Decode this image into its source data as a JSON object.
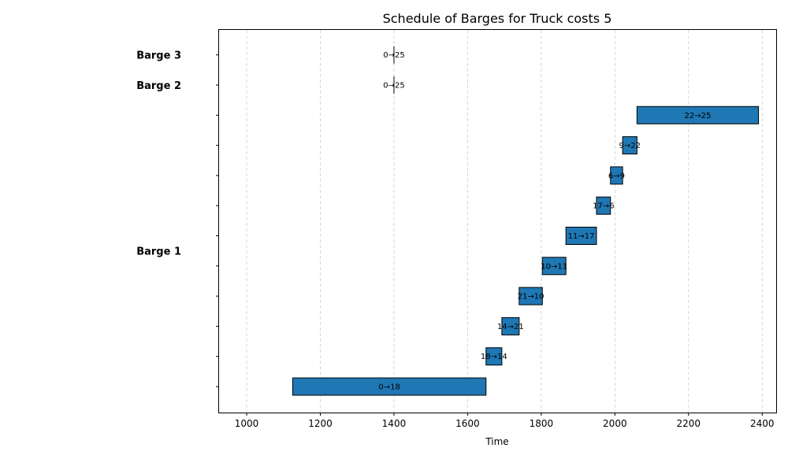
{
  "chart_data": {
    "type": "bar",
    "orientation": "horizontal-gantt",
    "title": "Schedule of Barges for Truck costs 5",
    "xlabel": "Time",
    "ylabel": "",
    "xlim": [
      925,
      2438
    ],
    "xticks": [
      1000,
      1200,
      1400,
      1600,
      1800,
      2000,
      2200,
      2400
    ],
    "grid": "vertical-dashed",
    "bar_color": "#1f77b4",
    "rows": 12,
    "group_labels": [
      {
        "label": "Barge 3",
        "row": 11
      },
      {
        "label": "Barge 2",
        "row": 10
      },
      {
        "label": "Barge 1",
        "row": 4.5
      }
    ],
    "tasks": [
      {
        "row": 0,
        "label": "0→18",
        "start": 1125,
        "end": 1650
      },
      {
        "row": 1,
        "label": "18→14",
        "start": 1650,
        "end": 1693
      },
      {
        "row": 2,
        "label": "14→21",
        "start": 1693,
        "end": 1740
      },
      {
        "row": 3,
        "label": "21→10",
        "start": 1740,
        "end": 1803
      },
      {
        "row": 4,
        "label": "10→11",
        "start": 1803,
        "end": 1867
      },
      {
        "row": 5,
        "label": "11→17",
        "start": 1867,
        "end": 1950
      },
      {
        "row": 6,
        "label": "17→6",
        "start": 1950,
        "end": 1988
      },
      {
        "row": 7,
        "label": "6→9",
        "start": 1988,
        "end": 2021
      },
      {
        "row": 8,
        "label": "9→22",
        "start": 2021,
        "end": 2060
      },
      {
        "row": 9,
        "label": "22→25",
        "start": 2060,
        "end": 2390
      },
      {
        "row": 10,
        "label": "0→25",
        "start": 1400,
        "end": 1400
      },
      {
        "row": 11,
        "label": "0→25",
        "start": 1400,
        "end": 1400
      }
    ]
  }
}
